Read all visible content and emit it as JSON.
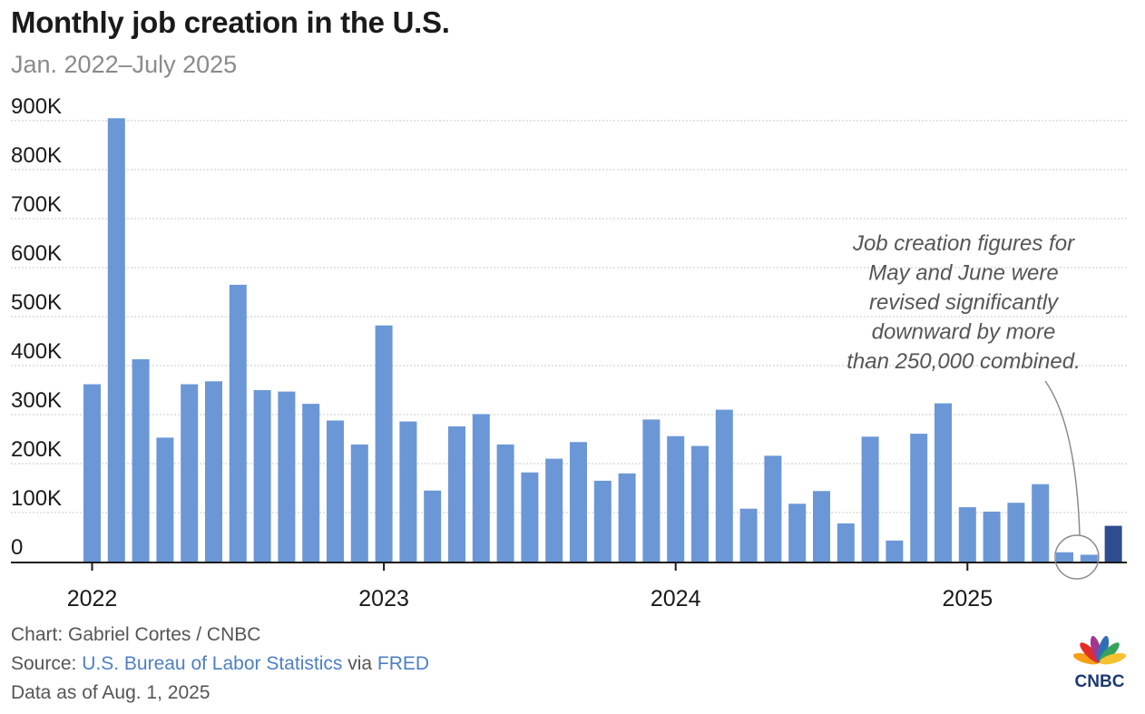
{
  "chart_data": {
    "type": "bar",
    "title": "Monthly job creation in the U.S.",
    "subtitle": "Jan. 2022–July 2025",
    "xlabel": "",
    "ylabel": "",
    "ylim": [
      0,
      900000
    ],
    "yticks": [
      {
        "value": 0,
        "label": "0"
      },
      {
        "value": 100000,
        "label": "100K"
      },
      {
        "value": 200000,
        "label": "200K"
      },
      {
        "value": 300000,
        "label": "300K"
      },
      {
        "value": 400000,
        "label": "400K"
      },
      {
        "value": 500000,
        "label": "500K"
      },
      {
        "value": 600000,
        "label": "600K"
      },
      {
        "value": 700000,
        "label": "700K"
      },
      {
        "value": 800000,
        "label": "800K"
      },
      {
        "value": 900000,
        "label": "900K"
      }
    ],
    "xticks": [
      {
        "index": 0,
        "label": "2022"
      },
      {
        "index": 12,
        "label": "2023"
      },
      {
        "index": 24,
        "label": "2024"
      },
      {
        "index": 36,
        "label": "2025"
      }
    ],
    "grid": true,
    "categories": [
      "2022-01",
      "2022-02",
      "2022-03",
      "2022-04",
      "2022-05",
      "2022-06",
      "2022-07",
      "2022-08",
      "2022-09",
      "2022-10",
      "2022-11",
      "2022-12",
      "2023-01",
      "2023-02",
      "2023-03",
      "2023-04",
      "2023-05",
      "2023-06",
      "2023-07",
      "2023-08",
      "2023-09",
      "2023-10",
      "2023-11",
      "2023-12",
      "2024-01",
      "2024-02",
      "2024-03",
      "2024-04",
      "2024-05",
      "2024-06",
      "2024-07",
      "2024-08",
      "2024-09",
      "2024-10",
      "2024-11",
      "2024-12",
      "2025-01",
      "2025-02",
      "2025-03",
      "2025-04",
      "2025-05",
      "2025-06",
      "2025-07"
    ],
    "values": [
      362000,
      905000,
      413000,
      253000,
      362000,
      368000,
      565000,
      350000,
      347000,
      322000,
      288000,
      239000,
      482000,
      286000,
      145000,
      276000,
      301000,
      239000,
      182000,
      210000,
      244000,
      165000,
      180000,
      290000,
      256000,
      236000,
      310000,
      108000,
      216000,
      118000,
      144000,
      78000,
      255000,
      43000,
      261000,
      323000,
      111000,
      102000,
      120000,
      158000,
      19000,
      14000,
      73000
    ],
    "colors": {
      "bar": "#6b97d6",
      "highlight": "#2e4c8f",
      "grid": "#c9c9c9",
      "axis": "#1a1a1a"
    },
    "highlight_index": 42,
    "annotation": {
      "lines": [
        "Job creation figures for",
        "May and June were",
        "revised significantly",
        "downward by more",
        "than 250,000 combined."
      ],
      "target_indices": [
        40,
        41
      ]
    }
  },
  "footer": {
    "chart_credit": "Chart: Gabriel Cortes / CNBC",
    "source_prefix": "Source: ",
    "source_bls": "U.S. Bureau of Labor Statistics",
    "source_via": " via ",
    "source_fred": "FRED",
    "data_date": "Data as of Aug. 1, 2025"
  },
  "logo": {
    "name": "CNBC",
    "icon": "peacock-logo-icon"
  }
}
